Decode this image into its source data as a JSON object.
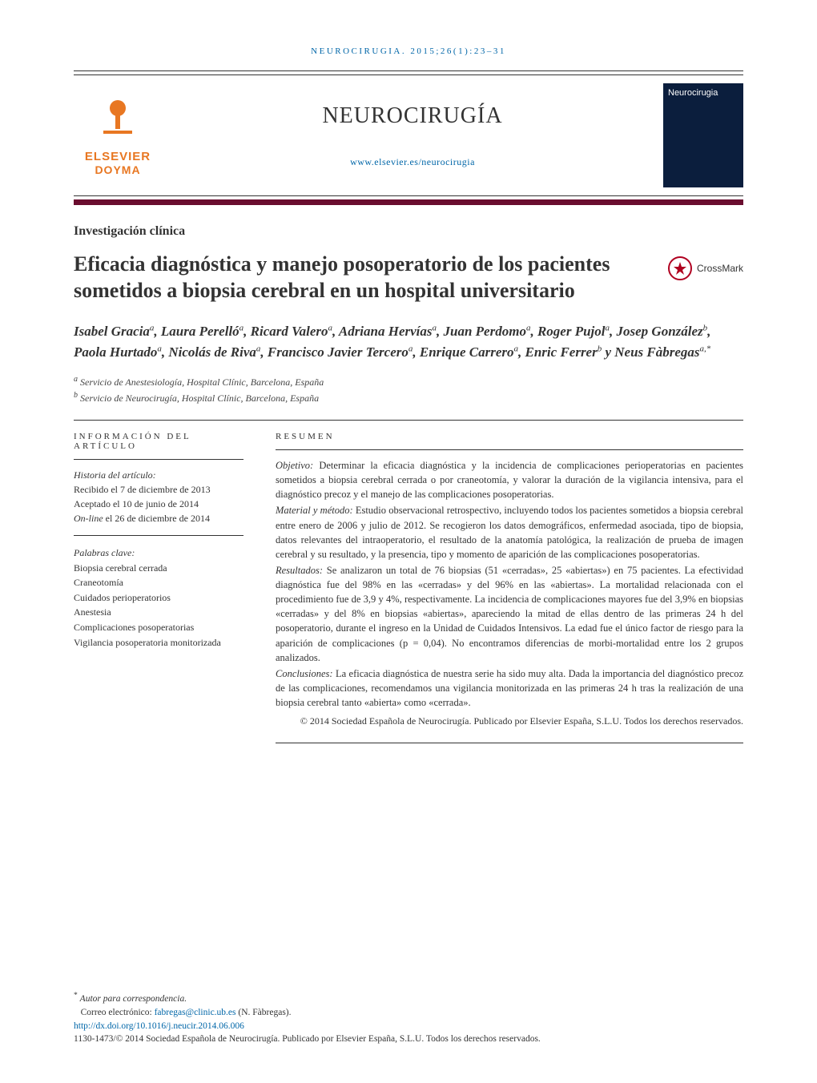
{
  "running_head": "NEUROCIRUGIA. 2015;26(1):23–31",
  "header": {
    "publisher_line1": "ELSEVIER",
    "publisher_line2": "DOYMA",
    "journal_title": "NEUROCIRUGÍA",
    "journal_url": "www.elsevier.es/neurocirugia",
    "cover_label": "Neurocirugia"
  },
  "section_label": "Investigación clínica",
  "article_title": "Eficacia diagnóstica y manejo posoperatorio de los pacientes sometidos a biopsia cerebral en un hospital universitario",
  "crossmark_label": "CrossMark",
  "authors_html": "Isabel Gracia<sup>a</sup>, Laura Perelló<sup>a</sup>, Ricard Valero<sup>a</sup>, Adriana Hervías<sup>a</sup>, Juan Perdomo<sup>a</sup>, Roger Pujol<sup>a</sup>, Josep González<sup>b</sup>, Paola Hurtado<sup>a</sup>, Nicolás de Riva<sup>a</sup>, Francisco Javier Tercero<sup>a</sup>, Enrique Carrero<sup>a</sup>, Enric Ferrer<sup>b</sup> y Neus Fàbregas<sup>a,*</sup>",
  "affiliations": [
    {
      "key": "a",
      "text": "Servicio de Anestesiología, Hospital Clínic, Barcelona, España"
    },
    {
      "key": "b",
      "text": "Servicio de Neurocirugía, Hospital Clínic, Barcelona, España"
    }
  ],
  "info_heading": "INFORMACIÓN DEL ARTÍCULO",
  "history": {
    "label": "Historia del artículo:",
    "received": "Recibido el 7 de diciembre de 2013",
    "accepted": "Aceptado el 10 de junio de 2014",
    "online": "On-line el 26 de diciembre de 2014"
  },
  "keywords": {
    "label": "Palabras clave:",
    "items": [
      "Biopsia cerebral cerrada",
      "Craneotomía",
      "Cuidados perioperatorios",
      "Anestesia",
      "Complicaciones posoperatorias",
      "Vigilancia posoperatoria monitorizada"
    ]
  },
  "resumen_heading": "RESUMEN",
  "abstract": {
    "objetivo_label": "Objetivo:",
    "objetivo": "Determinar la eficacia diagnóstica y la incidencia de complicaciones perioperatorias en pacientes sometidos a biopsia cerebral cerrada o por craneotomía, y valorar la duración de la vigilancia intensiva, para el diagnóstico precoz y el manejo de las complicaciones posoperatorias.",
    "material_label": "Material y método:",
    "material": "Estudio observacional retrospectivo, incluyendo todos los pacientes sometidos a biopsia cerebral entre enero de 2006 y julio de 2012. Se recogieron los datos demográficos, enfermedad asociada, tipo de biopsia, datos relevantes del intraoperatorio, el resultado de la anatomía patológica, la realización de prueba de imagen cerebral y su resultado, y la presencia, tipo y momento de aparición de las complicaciones posoperatorias.",
    "resultados_label": "Resultados:",
    "resultados": "Se analizaron un total de 76 biopsias (51 «cerradas», 25 «abiertas») en 75 pacientes. La efectividad diagnóstica fue del 98% en las «cerradas» y del 96% en las «abiertas». La mortalidad relacionada con el procedimiento fue de 3,9 y 4%, respectivamente. La incidencia de complicaciones mayores fue del 3,9% en biopsias «cerradas» y del 8% en biopsias «abiertas», apareciendo la mitad de ellas dentro de las primeras 24 h del posoperatorio, durante el ingreso en la Unidad de Cuidados Intensivos. La edad fue el único factor de riesgo para la aparición de complicaciones (p = 0,04). No encontramos diferencias de morbi-mortalidad entre los 2 grupos analizados.",
    "conclusiones_label": "Conclusiones:",
    "conclusiones": "La eficacia diagnóstica de nuestra serie ha sido muy alta. Dada la importancia del diagnóstico precoz de las complicaciones, recomendamos una vigilancia monitorizada en las primeras 24 h tras la realización de una biopsia cerebral tanto «abierta» como «cerrada».",
    "copyright": "© 2014 Sociedad Española de Neurocirugía. Publicado por Elsevier España, S.L.U. Todos los derechos reservados."
  },
  "footer": {
    "corr_symbol": "*",
    "corr_label": "Autor para correspondencia.",
    "email_label": "Correo electrónico:",
    "email": "fabregas@clinic.ub.es",
    "email_author": "(N. Fàbregas).",
    "doi": "http://dx.doi.org/10.1016/j.neucir.2014.06.006",
    "issn_line": "1130-1473/© 2014 Sociedad Española de Neurocirugía. Publicado por Elsevier España, S.L.U. Todos los derechos reservados."
  },
  "colors": {
    "accent_bar": "#6a0d2f",
    "link": "#0066a8",
    "publisher": "#e87722",
    "cover_bg": "#0b1e3d",
    "crossmark_ring": "#b00020"
  }
}
